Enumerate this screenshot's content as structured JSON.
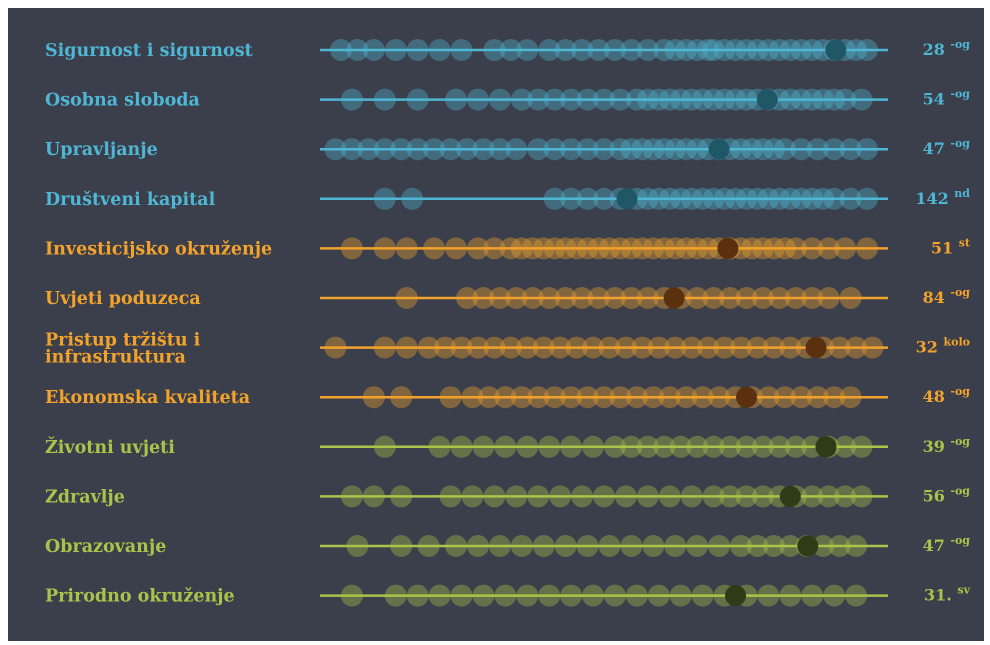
{
  "chart_data": {
    "type": "scatter",
    "colors": {
      "background": "#3a3f4b",
      "blue": "#4fb6d3",
      "blue_marker": "#1f5766",
      "orange": "#f3a22b",
      "orange_marker": "#5a300e",
      "green": "#a8c44a",
      "green_marker": "#2f3a16"
    },
    "grid": false,
    "legend": "none",
    "xlim": [
      0,
      1
    ],
    "rows": [
      {
        "label": "Sigurnost i sigurnost",
        "rank": "28",
        "suffix": "-og",
        "group": "blue",
        "marker": 0.923,
        "dots": [
          0.02,
          0.05,
          0.08,
          0.12,
          0.16,
          0.2,
          0.24,
          0.3,
          0.33,
          0.36,
          0.4,
          0.43,
          0.46,
          0.49,
          0.52,
          0.55,
          0.58,
          0.61,
          0.63,
          0.65,
          0.67,
          0.69,
          0.7,
          0.72,
          0.74,
          0.76,
          0.78,
          0.8,
          0.82,
          0.84,
          0.86,
          0.88,
          0.9,
          0.92,
          0.94,
          0.96,
          0.98
        ]
      },
      {
        "label": "Osobna sloboda",
        "rank": "54",
        "suffix": "-og",
        "group": "blue",
        "marker": 0.798,
        "dots": [
          0.04,
          0.1,
          0.16,
          0.23,
          0.27,
          0.31,
          0.35,
          0.38,
          0.41,
          0.44,
          0.47,
          0.5,
          0.53,
          0.56,
          0.58,
          0.6,
          0.62,
          0.64,
          0.66,
          0.68,
          0.7,
          0.72,
          0.74,
          0.76,
          0.78,
          0.8,
          0.82,
          0.84,
          0.86,
          0.88,
          0.9,
          0.92,
          0.94,
          0.97
        ]
      },
      {
        "label": "Upravljanje",
        "rank": "47",
        "suffix": "-og",
        "group": "blue",
        "marker": 0.71,
        "dots": [
          0.01,
          0.04,
          0.07,
          0.1,
          0.13,
          0.16,
          0.19,
          0.22,
          0.25,
          0.28,
          0.31,
          0.34,
          0.38,
          0.41,
          0.44,
          0.47,
          0.5,
          0.53,
          0.55,
          0.57,
          0.59,
          0.61,
          0.63,
          0.65,
          0.67,
          0.69,
          0.71,
          0.73,
          0.75,
          0.77,
          0.79,
          0.81,
          0.83,
          0.86,
          0.89,
          0.92,
          0.95,
          0.98
        ]
      },
      {
        "label": "Društveni kapital",
        "rank": "142",
        "suffix": "nd",
        "group": "blue",
        "marker": 0.542,
        "dots": [
          0.1,
          0.15,
          0.41,
          0.44,
          0.47,
          0.5,
          0.53,
          0.56,
          0.58,
          0.6,
          0.62,
          0.64,
          0.66,
          0.68,
          0.7,
          0.72,
          0.74,
          0.76,
          0.78,
          0.8,
          0.82,
          0.84,
          0.86,
          0.88,
          0.9,
          0.92,
          0.95,
          0.98
        ]
      },
      {
        "label": "Investicijsko okruženje",
        "rank": "51",
        "suffix": "st",
        "group": "orange",
        "marker": 0.726,
        "dots": [
          0.04,
          0.1,
          0.14,
          0.19,
          0.23,
          0.27,
          0.3,
          0.33,
          0.35,
          0.37,
          0.39,
          0.41,
          0.43,
          0.45,
          0.47,
          0.49,
          0.51,
          0.53,
          0.55,
          0.57,
          0.59,
          0.61,
          0.63,
          0.65,
          0.67,
          0.69,
          0.71,
          0.73,
          0.75,
          0.77,
          0.79,
          0.81,
          0.83,
          0.85,
          0.88,
          0.91,
          0.94,
          0.98
        ]
      },
      {
        "label": "Uvjeti poduzeca",
        "rank": "84",
        "suffix": "-og",
        "group": "orange",
        "marker": 0.628,
        "dots": [
          0.14,
          0.25,
          0.28,
          0.31,
          0.34,
          0.37,
          0.4,
          0.43,
          0.46,
          0.49,
          0.52,
          0.55,
          0.58,
          0.61,
          0.64,
          0.67,
          0.7,
          0.73,
          0.76,
          0.79,
          0.82,
          0.85,
          0.88,
          0.91,
          0.95
        ]
      },
      {
        "label": "Pristup tržištu i infrastruktura",
        "rank": "32",
        "suffix": "kolo",
        "group": "orange",
        "marker": 0.887,
        "dots": [
          0.01,
          0.1,
          0.14,
          0.18,
          0.21,
          0.24,
          0.27,
          0.3,
          0.33,
          0.36,
          0.39,
          0.42,
          0.45,
          0.48,
          0.51,
          0.54,
          0.57,
          0.6,
          0.63,
          0.66,
          0.69,
          0.72,
          0.75,
          0.78,
          0.81,
          0.84,
          0.87,
          0.9,
          0.93,
          0.96,
          0.99
        ]
      },
      {
        "label": "Ekonomska kvaliteta",
        "rank": "48",
        "suffix": "-og",
        "group": "orange",
        "marker": 0.76,
        "dots": [
          0.08,
          0.13,
          0.22,
          0.26,
          0.29,
          0.32,
          0.35,
          0.38,
          0.41,
          0.44,
          0.47,
          0.5,
          0.53,
          0.56,
          0.59,
          0.62,
          0.65,
          0.68,
          0.71,
          0.74,
          0.77,
          0.8,
          0.83,
          0.86,
          0.89,
          0.92,
          0.95
        ]
      },
      {
        "label": "Životni uvjeti",
        "rank": "39",
        "suffix": "-og",
        "group": "green",
        "marker": 0.905,
        "dots": [
          0.1,
          0.2,
          0.24,
          0.28,
          0.32,
          0.36,
          0.4,
          0.44,
          0.48,
          0.52,
          0.55,
          0.58,
          0.61,
          0.64,
          0.67,
          0.7,
          0.73,
          0.76,
          0.79,
          0.82,
          0.85,
          0.88,
          0.91,
          0.94,
          0.97
        ]
      },
      {
        "label": "Zdravlje",
        "rank": "56",
        "suffix": "-og",
        "group": "green",
        "marker": 0.84,
        "dots": [
          0.04,
          0.08,
          0.13,
          0.22,
          0.26,
          0.3,
          0.34,
          0.38,
          0.42,
          0.46,
          0.5,
          0.54,
          0.58,
          0.62,
          0.66,
          0.7,
          0.73,
          0.76,
          0.79,
          0.82,
          0.85,
          0.88,
          0.91,
          0.94,
          0.97
        ]
      },
      {
        "label": "Obrazovanje",
        "rank": "47",
        "suffix": "-og",
        "group": "green",
        "marker": 0.872,
        "dots": [
          0.05,
          0.13,
          0.18,
          0.23,
          0.27,
          0.31,
          0.35,
          0.39,
          0.43,
          0.47,
          0.51,
          0.55,
          0.59,
          0.63,
          0.67,
          0.71,
          0.75,
          0.78,
          0.81,
          0.84,
          0.87,
          0.9,
          0.93,
          0.96
        ]
      },
      {
        "label": "Prirodno okruženje",
        "rank": "31.",
        "suffix": "sv",
        "group": "green",
        "marker": 0.74,
        "dots": [
          0.04,
          0.12,
          0.16,
          0.2,
          0.24,
          0.28,
          0.32,
          0.36,
          0.4,
          0.44,
          0.48,
          0.52,
          0.56,
          0.6,
          0.64,
          0.68,
          0.72,
          0.76,
          0.8,
          0.84,
          0.88,
          0.92,
          0.96
        ]
      }
    ]
  }
}
